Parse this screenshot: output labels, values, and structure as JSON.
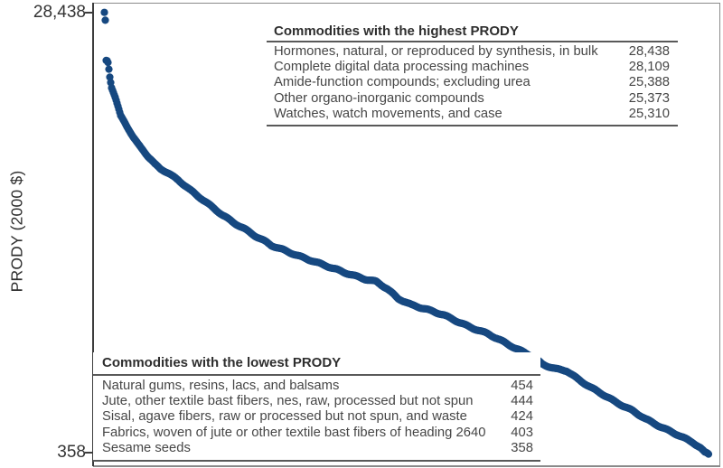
{
  "figure": {
    "y_axis": {
      "label": "PRODY (2000 $)",
      "tick_top": "28,438",
      "tick_bottom": "358"
    },
    "colors": {
      "axis": "#3c3c3c",
      "frame": "#8a8a8a",
      "rule": "#595959",
      "text": "#464646"
    }
  },
  "tables": {
    "highest": {
      "title": "Commodities with the highest PRODY",
      "rows": [
        {
          "name": "Hormones, natural, or reproduced by synthesis, in bulk",
          "value": "28,438"
        },
        {
          "name": "Complete digital data processing machines",
          "value": "28,109"
        },
        {
          "name": "Amide-function compounds; excluding urea",
          "value": "25,388"
        },
        {
          "name": "Other organo-inorganic compounds",
          "value": "25,373"
        },
        {
          "name": "Watches, watch movements, and case",
          "value": "25,310"
        }
      ]
    },
    "lowest": {
      "title": "Commodities with the lowest PRODY",
      "rows": [
        {
          "name": "Natural gums, resins, lacs, and balsams",
          "value": "454"
        },
        {
          "name": "Jute, other textile bast fibers, nes, raw, processed but not spun",
          "value": "444"
        },
        {
          "name": "Sisal, agave fibers, raw or processed but not spun, and waste",
          "value": "424"
        },
        {
          "name": "Fabrics, woven of jute or other textile bast fibers of heading 2640",
          "value": "403"
        },
        {
          "name": "Sesame seeds",
          "value": "358"
        }
      ]
    }
  },
  "chart_data": {
    "type": "scatter",
    "title": "",
    "xlabel": "",
    "ylabel": "PRODY (2000 $)",
    "x_meaning": "commodities ranked from highest to lowest PRODY (no x-axis tick labels shown)",
    "ylim": [
      358,
      28438
    ],
    "y_ticks": [
      28438,
      358
    ],
    "grid": false,
    "legend": "none",
    "n_points": 670,
    "marker_color": "#164880",
    "marker_radius": 4.1,
    "highest_prody": [
      [
        "Hormones, natural, or reproduced by synthesis, in bulk",
        28438
      ],
      [
        "Complete digital data processing machines",
        28109
      ],
      [
        "Amide-function compounds; excluding urea",
        25388
      ],
      [
        "Other organo-inorganic compounds",
        25373
      ],
      [
        "Watches, watch movements, and case",
        25310
      ]
    ],
    "lowest_prody": [
      [
        "Natural gums, resins, lacs, and balsams",
        454
      ],
      [
        "Jute, other textile bast fibers, nes, raw, processed but not spun",
        444
      ],
      [
        "Sisal, agave fibers, raw or processed but not spun, and waste",
        424
      ],
      [
        "Fabrics, woven of jute or other textile bast fibers of heading 2640",
        403
      ],
      [
        "Sesame seeds",
        358
      ]
    ],
    "curve_profile": [
      [
        0.0,
        28438
      ],
      [
        0.0014,
        28109
      ],
      [
        0.0029,
        25388
      ],
      [
        0.0044,
        25373
      ],
      [
        0.0058,
        25310
      ],
      [
        0.0075,
        24821
      ],
      [
        0.009,
        24361
      ],
      [
        0.012,
        23672
      ],
      [
        0.0179,
        23041
      ],
      [
        0.0224,
        22466
      ],
      [
        0.0269,
        21892
      ],
      [
        0.0329,
        21548
      ],
      [
        0.0404,
        21031
      ],
      [
        0.0478,
        20514
      ],
      [
        0.0553,
        20112
      ],
      [
        0.0643,
        19710
      ],
      [
        0.0732,
        19251
      ],
      [
        0.0837,
        18791
      ],
      [
        0.0927,
        18504
      ],
      [
        0.1031,
        18274
      ],
      [
        0.1136,
        17987
      ],
      [
        0.1226,
        17758
      ],
      [
        0.142,
        17126
      ],
      [
        0.1599,
        16609
      ],
      [
        0.1779,
        16093
      ],
      [
        0.1958,
        15576
      ],
      [
        0.2137,
        15117
      ],
      [
        0.2317,
        14715
      ],
      [
        0.2496,
        14255
      ],
      [
        0.2675,
        13853
      ],
      [
        0.2765,
        13624
      ],
      [
        0.2989,
        13279
      ],
      [
        0.3214,
        12935
      ],
      [
        0.3438,
        12648
      ],
      [
        0.3662,
        12361
      ],
      [
        0.3842,
        12131
      ],
      [
        0.3961,
        11959
      ],
      [
        0.4141,
        11729
      ],
      [
        0.432,
        11499
      ],
      [
        0.4499,
        11327
      ],
      [
        0.4679,
        10868
      ],
      [
        0.4858,
        10236
      ],
      [
        0.5082,
        9834
      ],
      [
        0.5307,
        9605
      ],
      [
        0.5606,
        9260
      ],
      [
        0.583,
        8858
      ],
      [
        0.6054,
        8456
      ],
      [
        0.6353,
        7997
      ],
      [
        0.6577,
        7538
      ],
      [
        0.6801,
        7078
      ],
      [
        0.71,
        6562
      ],
      [
        0.725,
        6102
      ],
      [
        0.7474,
        5815
      ],
      [
        0.7653,
        5700
      ],
      [
        0.7848,
        5126
      ],
      [
        0.8072,
        4552
      ],
      [
        0.8251,
        4150
      ],
      [
        0.8445,
        3691
      ],
      [
        0.8744,
        3116
      ],
      [
        0.8969,
        2600
      ],
      [
        0.9238,
        2083
      ],
      [
        0.9492,
        1624
      ],
      [
        0.9746,
        1107
      ],
      [
        0.9865,
        762
      ],
      [
        0.994,
        454
      ],
      [
        0.9955,
        444
      ],
      [
        0.997,
        424
      ],
      [
        0.9985,
        403
      ],
      [
        1.0,
        358
      ]
    ]
  }
}
